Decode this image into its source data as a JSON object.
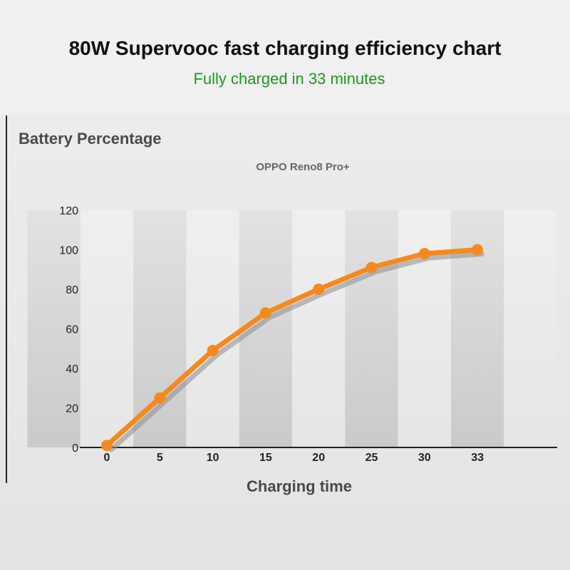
{
  "title": "80W Supervooc fast charging efficiency chart",
  "subtitle": "Fully charged in 33 minutes",
  "chart_data": {
    "type": "line",
    "ylabel": "Battery Percentage",
    "xlabel": "Charging time",
    "categories": [
      "0",
      "5",
      "10",
      "15",
      "20",
      "25",
      "30",
      "33"
    ],
    "series": [
      {
        "name": "OPPO Reno8 Pro+",
        "values": [
          1,
          25,
          49,
          68,
          80,
          91,
          98,
          100
        ],
        "color": "#f5891e"
      }
    ],
    "ylim": [
      0,
      120
    ],
    "yticks": [
      0,
      20,
      40,
      60,
      80,
      100,
      120
    ],
    "grid": "alternating vertical column bands",
    "legend": "top-center"
  }
}
